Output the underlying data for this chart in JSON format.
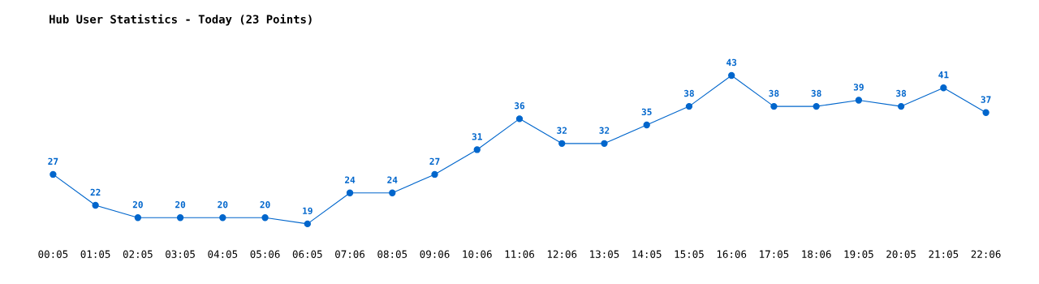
{
  "chart_data": {
    "type": "line",
    "title": "Hub User Statistics - Today (23 Points)",
    "categories": [
      "00:05",
      "01:05",
      "02:05",
      "03:05",
      "04:05",
      "05:06",
      "06:05",
      "07:06",
      "08:05",
      "09:06",
      "10:06",
      "11:06",
      "12:06",
      "13:05",
      "14:05",
      "15:05",
      "16:06",
      "17:05",
      "18:06",
      "19:05",
      "20:05",
      "21:05",
      "22:06"
    ],
    "series": [
      {
        "color": "#0066cc",
        "values": [
          27,
          22,
          20,
          20,
          20,
          20,
          19,
          24,
          24,
          27,
          31,
          36,
          32,
          32,
          35,
          38,
          43,
          38,
          38,
          39,
          38,
          41,
          37
        ]
      }
    ],
    "data_labels": true,
    "marker": "circle",
    "line_style": "solid",
    "grid": false,
    "legend": false,
    "tick_labels": "x"
  }
}
